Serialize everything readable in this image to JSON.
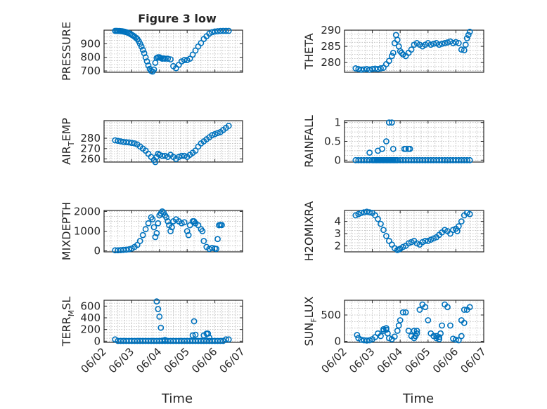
{
  "figure": {
    "title": "Figure 3 low",
    "xlabel": "Time",
    "marker_color": "#0072BD",
    "x_tick_labels": [
      "06/02",
      "06/03",
      "06/04",
      "06/05",
      "06/06",
      "06/07"
    ],
    "x_tick_values": [
      0,
      1,
      2,
      3,
      4,
      5
    ],
    "x_range": [
      0,
      5
    ]
  },
  "chart_data": [
    {
      "type": "scatter",
      "ylabel_parts": [
        "PRESSURE"
      ],
      "ylim": [
        690,
        1000
      ],
      "yticks": [
        700,
        800,
        900
      ],
      "grid": true,
      "series": [
        {
          "x": [
            0.4,
            0.45,
            0.5,
            0.55,
            0.6,
            0.65,
            0.7,
            0.75,
            0.8,
            0.85,
            0.9,
            0.95,
            1.0,
            1.05,
            1.1,
            1.15,
            1.2,
            1.25,
            1.3,
            1.35,
            1.4,
            1.45,
            1.5,
            1.55,
            1.6,
            1.65,
            1.7,
            1.75,
            1.8,
            1.85,
            1.9,
            1.95,
            2.0,
            2.05,
            2.1,
            2.15,
            2.2,
            2.3,
            2.4,
            2.5,
            2.6,
            2.7,
            2.8,
            2.9,
            3.0,
            3.1,
            3.2,
            3.3,
            3.4,
            3.5,
            3.6,
            3.7,
            3.8,
            3.9,
            4.0,
            4.1,
            4.2,
            4.3,
            4.4,
            4.5
          ],
          "y": [
            995,
            995,
            994,
            994,
            993,
            992,
            990,
            988,
            985,
            982,
            978,
            972,
            966,
            960,
            952,
            944,
            935,
            920,
            900,
            880,
            855,
            830,
            800,
            770,
            740,
            715,
            700,
            695,
            710,
            760,
            795,
            800,
            800,
            795,
            790,
            792,
            790,
            790,
            785,
            735,
            720,
            745,
            770,
            780,
            780,
            790,
            820,
            850,
            880,
            905,
            935,
            955,
            975,
            985,
            990,
            992,
            994,
            995,
            995,
            995
          ]
        }
      ]
    },
    {
      "type": "scatter",
      "ylabel_parts": [
        "THETA"
      ],
      "ylim": [
        277,
        290
      ],
      "yticks": [
        280,
        285,
        290
      ],
      "grid": true,
      "series": [
        {
          "x": [
            0.4,
            0.5,
            0.6,
            0.7,
            0.8,
            0.9,
            1.0,
            1.1,
            1.2,
            1.3,
            1.4,
            1.5,
            1.6,
            1.7,
            1.75,
            1.8,
            1.85,
            1.9,
            1.95,
            2.0,
            2.05,
            2.1,
            2.2,
            2.3,
            2.4,
            2.5,
            2.6,
            2.7,
            2.8,
            2.9,
            3.0,
            3.1,
            3.2,
            3.3,
            3.4,
            3.5,
            3.6,
            3.7,
            3.8,
            3.9,
            4.0,
            4.1,
            4.2,
            4.3,
            4.35,
            4.4,
            4.45,
            4.5
          ],
          "y": [
            278.2,
            278.0,
            277.8,
            277.9,
            278.0,
            277.8,
            278.0,
            278.1,
            278.0,
            278.2,
            278.4,
            279.5,
            280.5,
            282.0,
            283.0,
            286.0,
            288.5,
            287.0,
            285.0,
            283.5,
            283.0,
            282.5,
            282.0,
            283.0,
            284.0,
            285.5,
            286.0,
            285.5,
            285.0,
            285.5,
            286.0,
            285.5,
            285.8,
            286.0,
            285.5,
            285.8,
            286.0,
            286.2,
            286.5,
            286.0,
            286.3,
            286.0,
            284.0,
            283.8,
            285.5,
            287.5,
            288.5,
            289.5
          ]
        }
      ]
    },
    {
      "type": "scatter",
      "ylabel_parts": [
        "AIR",
        "T",
        "EMP"
      ],
      "ylim": [
        257,
        297
      ],
      "yticks": [
        260,
        270,
        280
      ],
      "grid": true,
      "series": [
        {
          "x": [
            0.4,
            0.5,
            0.6,
            0.7,
            0.8,
            0.9,
            1.0,
            1.1,
            1.2,
            1.3,
            1.4,
            1.5,
            1.6,
            1.7,
            1.8,
            1.85,
            1.9,
            1.95,
            2.0,
            2.1,
            2.2,
            2.3,
            2.4,
            2.5,
            2.6,
            2.7,
            2.8,
            2.9,
            3.0,
            3.1,
            3.2,
            3.3,
            3.4,
            3.5,
            3.6,
            3.7,
            3.8,
            3.9,
            4.0,
            4.1,
            4.2,
            4.3,
            4.4,
            4.5
          ],
          "y": [
            278,
            277.5,
            277,
            276.5,
            276.2,
            276,
            275.5,
            275,
            274,
            272,
            270,
            268,
            265,
            262,
            259,
            257,
            262,
            265,
            264,
            263,
            263,
            262,
            264,
            262,
            260,
            262,
            263,
            263,
            262,
            264,
            266,
            268,
            272,
            275,
            277,
            279,
            281,
            283,
            284,
            285,
            286,
            288,
            290,
            292
          ]
        }
      ]
    },
    {
      "type": "scatter",
      "ylabel_parts": [
        "RAINFALL"
      ],
      "ylim": [
        -0.05,
        1.05
      ],
      "yticks": [
        0,
        0.5,
        1
      ],
      "ytick_labels": [
        "0",
        "0.5",
        "1"
      ],
      "grid": true,
      "series": [
        {
          "x": [
            0.4,
            0.5,
            0.6,
            0.7,
            0.8,
            0.9,
            1.0,
            1.05,
            1.1,
            1.15,
            1.2,
            1.25,
            1.3,
            1.35,
            1.4,
            1.45,
            1.5,
            1.55,
            1.6,
            1.65,
            1.7,
            1.75,
            1.8,
            1.85,
            1.9,
            2.0,
            2.1,
            2.2,
            2.3,
            2.4,
            2.5,
            2.6,
            2.7,
            2.8,
            2.9,
            3.0,
            3.1,
            3.2,
            3.3,
            3.4,
            3.5,
            3.6,
            3.7,
            3.8,
            3.9,
            4.0,
            4.1,
            4.2,
            4.3,
            4.4,
            4.5,
            0.9,
            1.2,
            1.35,
            1.5,
            1.6,
            1.7,
            1.75,
            2.15,
            2.2,
            2.3,
            2.35
          ],
          "y": [
            0,
            0,
            0,
            0,
            0,
            0,
            0,
            0,
            0,
            0,
            0,
            0,
            0,
            0,
            0,
            0,
            0,
            0,
            0,
            0,
            0,
            0,
            0,
            0,
            0,
            0,
            0,
            0,
            0,
            0,
            0,
            0,
            0,
            0,
            0,
            0,
            0,
            0,
            0,
            0,
            0,
            0,
            0,
            0,
            0,
            0,
            0,
            0,
            0,
            0,
            0,
            0.2,
            0.25,
            0.3,
            0.5,
            1.0,
            1.0,
            0.3,
            0.3,
            0.3,
            0.3,
            0.3
          ]
        }
      ]
    },
    {
      "type": "scatter",
      "ylabel_parts": [
        "MIXDEPTH"
      ],
      "ylim": [
        -50,
        2050
      ],
      "yticks": [
        0,
        1000,
        2000
      ],
      "grid": true,
      "series": [
        {
          "x": [
            0.4,
            0.5,
            0.6,
            0.7,
            0.8,
            0.9,
            1.0,
            1.1,
            1.2,
            1.3,
            1.4,
            1.5,
            1.6,
            1.7,
            1.75,
            1.8,
            1.85,
            1.9,
            1.95,
            2.0,
            2.05,
            2.1,
            2.15,
            2.2,
            2.25,
            2.3,
            2.35,
            2.4,
            2.45,
            2.5,
            2.6,
            2.7,
            2.8,
            2.9,
            3.0,
            3.05,
            3.1,
            3.2,
            3.25,
            3.3,
            3.4,
            3.5,
            3.55,
            3.6,
            3.7,
            3.8,
            3.9,
            4.0,
            4.05,
            4.1,
            4.15,
            4.2,
            4.25
          ],
          "y": [
            30,
            30,
            40,
            50,
            60,
            80,
            120,
            200,
            300,
            500,
            800,
            1100,
            1400,
            1700,
            1600,
            1200,
            700,
            900,
            1400,
            1800,
            1900,
            2000,
            1950,
            1800,
            1700,
            1500,
            1300,
            1000,
            1200,
            1500,
            1600,
            1500,
            1400,
            1450,
            1000,
            800,
            1300,
            1500,
            1500,
            1400,
            1300,
            1100,
            1000,
            500,
            200,
            100,
            150,
            120,
            100,
            600,
            1300,
            1320,
            1310
          ]
        }
      ]
    },
    {
      "type": "scatter",
      "ylabel_parts": [
        "H2OMIXRA"
      ],
      "ylim": [
        1.5,
        4.9
      ],
      "yticks": [
        2,
        3,
        4
      ],
      "grid": true,
      "series": [
        {
          "x": [
            0.4,
            0.5,
            0.6,
            0.7,
            0.8,
            0.9,
            1.0,
            1.1,
            1.2,
            1.3,
            1.4,
            1.5,
            1.6,
            1.7,
            1.8,
            1.9,
            1.95,
            2.0,
            2.1,
            2.2,
            2.3,
            2.4,
            2.5,
            2.6,
            2.7,
            2.8,
            2.9,
            3.0,
            3.1,
            3.2,
            3.3,
            3.4,
            3.5,
            3.6,
            3.7,
            3.8,
            3.9,
            4.0,
            4.05,
            4.1,
            4.2,
            4.3,
            4.4,
            4.5
          ],
          "y": [
            4.5,
            4.6,
            4.7,
            4.75,
            4.8,
            4.75,
            4.7,
            4.5,
            4.2,
            3.8,
            3.3,
            2.8,
            2.4,
            2.1,
            1.8,
            1.65,
            1.7,
            1.75,
            1.9,
            2.0,
            2.2,
            2.3,
            2.4,
            2.2,
            2.1,
            2.3,
            2.4,
            2.4,
            2.5,
            2.6,
            2.7,
            2.9,
            3.1,
            3.3,
            3.2,
            3.0,
            3.3,
            3.4,
            3.2,
            3.6,
            4.0,
            4.5,
            4.7,
            4.6
          ]
        }
      ]
    },
    {
      "type": "scatter",
      "ylabel_parts": [
        "TERR",
        "M",
        "SL"
      ],
      "ylim": [
        -20,
        700
      ],
      "yticks": [
        0,
        200,
        400,
        600
      ],
      "grid": true,
      "series": [
        {
          "x": [
            0.4,
            0.5,
            0.6,
            0.7,
            0.8,
            0.9,
            1.0,
            1.1,
            1.2,
            1.3,
            1.4,
            1.5,
            1.6,
            1.7,
            1.8,
            1.9,
            2.0,
            2.1,
            2.2,
            2.3,
            2.4,
            2.5,
            2.6,
            2.7,
            2.8,
            2.9,
            3.0,
            3.1,
            3.2,
            3.3,
            3.4,
            3.5,
            3.6,
            3.7,
            3.8,
            3.9,
            4.0,
            4.1,
            4.2,
            4.3,
            4.4,
            4.5,
            1.9,
            1.95,
            2.0,
            2.05,
            2.1,
            2.2,
            3.2,
            3.25,
            3.3,
            3.6,
            3.7,
            3.75,
            3.8
          ],
          "y": [
            30,
            5,
            5,
            5,
            5,
            5,
            5,
            5,
            5,
            5,
            5,
            5,
            5,
            5,
            5,
            5,
            5,
            5,
            5,
            5,
            5,
            5,
            5,
            5,
            5,
            5,
            5,
            5,
            5,
            5,
            5,
            5,
            5,
            5,
            5,
            5,
            5,
            5,
            5,
            5,
            30,
            30,
            680,
            550,
            420,
            230,
            10,
            20,
            100,
            340,
            110,
            100,
            130,
            130,
            60
          ]
        }
      ]
    },
    {
      "type": "scatter",
      "ylabel_parts": [
        "SUN",
        "F",
        "LUX"
      ],
      "ylim": [
        -20,
        780
      ],
      "yticks": [
        0,
        500
      ],
      "grid": true,
      "series": [
        {
          "x": [
            0.45,
            0.5,
            0.6,
            0.7,
            0.8,
            0.9,
            1.0,
            1.1,
            1.2,
            1.3,
            1.4,
            1.5,
            1.55,
            1.6,
            1.7,
            1.8,
            1.9,
            1.95,
            2.0,
            2.1,
            2.2,
            2.3,
            2.4,
            2.5,
            2.55,
            2.6,
            2.7,
            2.8,
            2.9,
            3.0,
            3.1,
            3.2,
            3.3,
            3.4,
            3.45,
            3.5,
            3.6,
            3.7,
            3.8,
            3.9,
            4.0,
            4.1,
            4.2,
            4.3,
            4.4,
            4.5,
            1.4,
            1.5,
            2.5,
            2.6,
            3.3,
            3.4,
            4.2,
            4.3
          ],
          "y": [
            120,
            60,
            30,
            20,
            15,
            20,
            40,
            80,
            150,
            100,
            200,
            250,
            150,
            60,
            40,
            90,
            200,
            300,
            400,
            550,
            550,
            200,
            100,
            60,
            100,
            200,
            600,
            700,
            650,
            400,
            150,
            100,
            60,
            40,
            150,
            300,
            700,
            650,
            300,
            50,
            30,
            20,
            100,
            600,
            600,
            650,
            230,
            220,
            200,
            150,
            100,
            80,
            400,
            350
          ]
        }
      ]
    }
  ]
}
